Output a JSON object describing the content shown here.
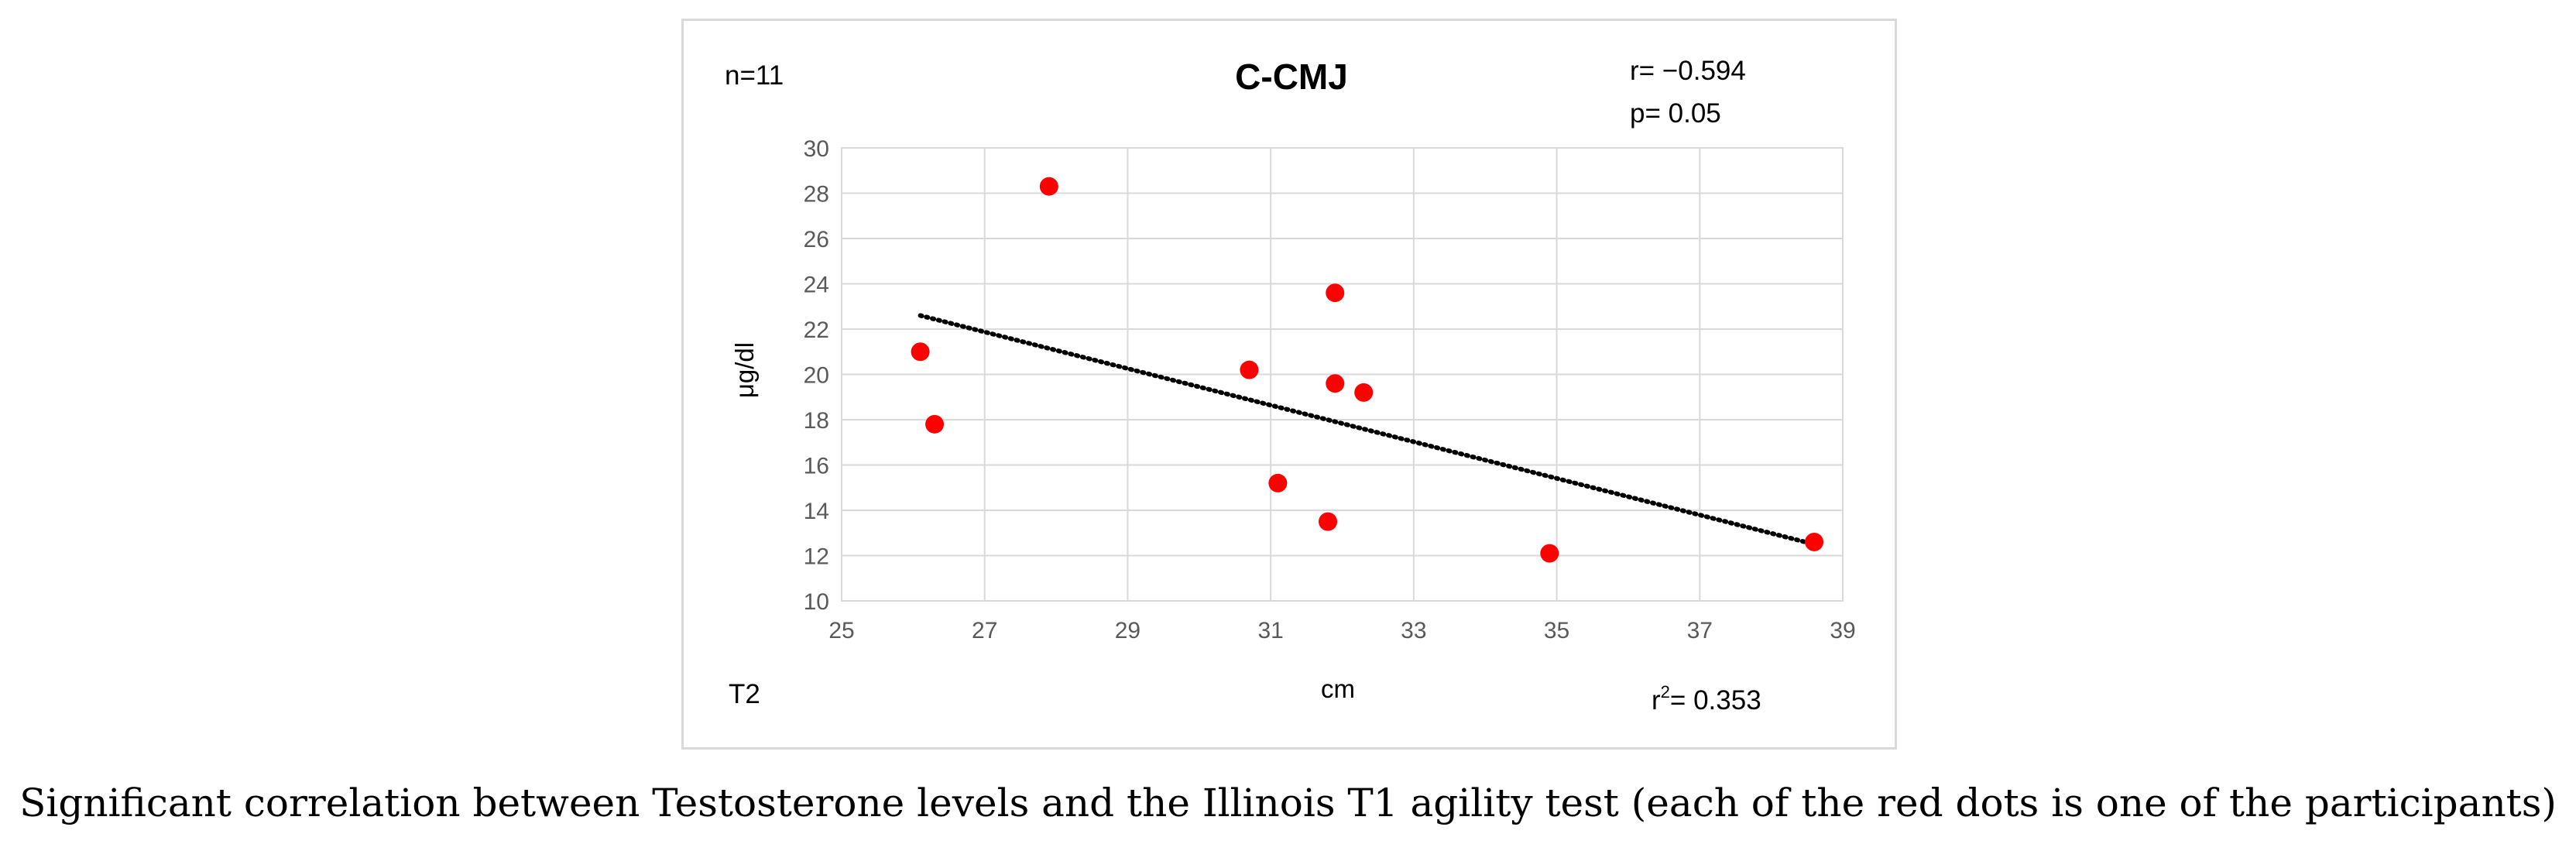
{
  "chart_data": {
    "type": "scatter",
    "title": "C-CMJ",
    "xlabel": "cm",
    "ylabel": "μg/dl",
    "xlim": [
      25,
      39
    ],
    "ylim": [
      10,
      30
    ],
    "x_ticks": [
      25,
      27,
      29,
      31,
      33,
      35,
      37,
      39
    ],
    "y_ticks": [
      10,
      12,
      14,
      16,
      18,
      20,
      22,
      24,
      26,
      28,
      30
    ],
    "grid": true,
    "series": [
      {
        "name": "participants",
        "color": "#ff0000",
        "points": [
          {
            "x": 26.1,
            "y": 21.0
          },
          {
            "x": 26.3,
            "y": 17.8
          },
          {
            "x": 27.9,
            "y": 28.3
          },
          {
            "x": 30.7,
            "y": 20.2
          },
          {
            "x": 31.1,
            "y": 15.2
          },
          {
            "x": 31.8,
            "y": 13.5
          },
          {
            "x": 31.9,
            "y": 23.6
          },
          {
            "x": 31.9,
            "y": 19.6
          },
          {
            "x": 32.3,
            "y": 19.2
          },
          {
            "x": 34.9,
            "y": 12.1
          },
          {
            "x": 38.6,
            "y": 12.6
          }
        ]
      }
    ],
    "trendline": {
      "style": "dotted",
      "color": "#000000",
      "x": [
        26.1,
        38.6
      ],
      "y": [
        22.6,
        12.5
      ]
    },
    "annotations": {
      "n": "n=11",
      "r": "r= −0.594",
      "p": "p= 0.05",
      "time": "T2",
      "r2_prefix": "r",
      "r2_sup": "2",
      "r2_value": "= 0.353"
    }
  },
  "caption": "Significant correlation between Testosterone levels and the Illinois T1 agility test (each of the red dots is one of the participants)"
}
